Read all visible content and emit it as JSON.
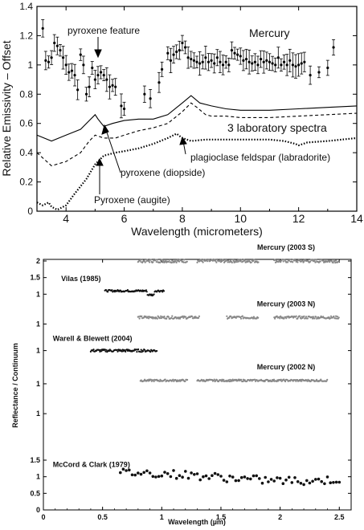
{
  "chart_data": [
    {
      "type": "scatter",
      "xlabel": "Wavelength (micrometers)",
      "ylabel": "Relative Emissivity – Offset",
      "xlim": [
        3,
        14
      ],
      "ylim": [
        0,
        1.4
      ],
      "xticks": [
        "4",
        "6",
        "8",
        "10",
        "12",
        "14"
      ],
      "yticks": [
        "0",
        "0.2",
        "0.4",
        "0.6",
        "0.8",
        "1",
        "1.2",
        "1.4"
      ],
      "annotations": {
        "mercury": "Mercury",
        "pyroxene_feature": "pyroxene feature",
        "lab_spectra": "3 laboratory spectra",
        "plagioclase": "plagioclase feldspar (labradorite)",
        "diopside": "pyroxene (diopside)",
        "augite": "Pyroxene (augite)"
      },
      "series": [
        {
          "name": "Mercury",
          "style": "errorbar",
          "x": [
            3.2,
            3.3,
            3.4,
            3.5,
            3.6,
            3.7,
            3.8,
            3.9,
            4.0,
            4.1,
            4.2,
            4.3,
            4.4,
            4.5,
            4.6,
            4.7,
            4.8,
            4.9,
            5.0,
            5.1,
            5.2,
            5.3,
            5.4,
            5.5,
            5.6,
            5.7,
            5.9,
            6.0,
            6.7,
            6.9,
            7.2,
            7.3,
            7.5,
            7.6,
            7.7,
            7.8,
            7.9,
            8.0,
            8.1,
            8.2,
            8.3,
            8.4,
            8.5,
            8.6,
            8.7,
            8.8,
            8.9,
            9.0,
            9.1,
            9.2,
            9.3,
            9.4,
            9.5,
            9.6,
            9.7,
            9.8,
            9.9,
            10.0,
            10.1,
            10.2,
            10.3,
            10.4,
            10.5,
            10.6,
            10.7,
            10.8,
            10.9,
            11.0,
            11.1,
            11.2,
            11.3,
            11.4,
            11.5,
            11.6,
            11.7,
            11.8,
            11.9,
            12.0,
            12.1,
            12.2,
            12.4,
            12.7,
            13.0,
            13.2
          ],
          "y": [
            1.25,
            1.03,
            1.02,
            1.05,
            1.15,
            1.13,
            1.1,
            1.05,
            1.0,
            0.95,
            0.96,
            0.93,
            0.83,
            1.07,
            1.0,
            0.8,
            0.85,
            0.98,
            0.9,
            0.93,
            0.95,
            0.93,
            0.9,
            0.85,
            0.86,
            0.85,
            0.72,
            0.7,
            0.8,
            0.77,
            0.88,
            0.97,
            1.08,
            1.03,
            1.07,
            1.09,
            1.1,
            1.15,
            1.12,
            1.05,
            1.04,
            1.03,
            1.02,
            1.01,
            1.02,
            1.05,
            1.02,
            1.03,
            1.01,
            1.05,
            1.02,
            1.0,
            1.02,
            1.0,
            1.1,
            1.08,
            1.07,
            1.06,
            1.03,
            1.04,
            1.02,
            1.01,
            1.02,
            1.0,
            1.04,
            1.02,
            1.03,
            1.02,
            1.01,
            1.0,
            1.05,
            1.0,
            1.02,
            1.0,
            1.03,
            1.0,
            0.99,
            1.0,
            1.01,
            1.02,
            0.93,
            0.95,
            0.98,
            1.12
          ],
          "err": 0.06
        },
        {
          "name": "",
          "style": "solid",
          "x": [
            3.0,
            3.5,
            4.0,
            4.5,
            4.8,
            5.0,
            5.1,
            5.3,
            5.6,
            6.0,
            6.5,
            7.0,
            7.5,
            8.0,
            8.3,
            8.6,
            9.0,
            9.5,
            10.0,
            11.0,
            12.0,
            13.0,
            14.0
          ],
          "y": [
            0.52,
            0.48,
            0.52,
            0.56,
            0.62,
            0.66,
            0.63,
            0.58,
            0.6,
            0.62,
            0.63,
            0.63,
            0.66,
            0.74,
            0.79,
            0.74,
            0.72,
            0.7,
            0.69,
            0.69,
            0.7,
            0.71,
            0.72
          ]
        },
        {
          "name": "",
          "style": "dashed",
          "x": [
            3.0,
            3.5,
            4.0,
            4.5,
            4.8,
            5.0,
            5.3,
            5.7,
            6.0,
            6.5,
            7.0,
            7.5,
            8.0,
            8.3,
            8.5,
            8.8,
            9.0,
            9.5,
            10.0,
            11.0,
            12.0,
            13.0,
            14.0
          ],
          "y": [
            0.4,
            0.31,
            0.34,
            0.4,
            0.48,
            0.52,
            0.5,
            0.5,
            0.52,
            0.55,
            0.57,
            0.6,
            0.68,
            0.74,
            0.71,
            0.66,
            0.65,
            0.65,
            0.64,
            0.64,
            0.65,
            0.66,
            0.67
          ]
        },
        {
          "name": "",
          "style": "dotted",
          "x": [
            3.0,
            3.2,
            3.4,
            3.5,
            3.7,
            4.0,
            4.3,
            4.7,
            5.0,
            5.3,
            5.7,
            6.0,
            6.5,
            7.0,
            7.5,
            7.8,
            8.0,
            8.3,
            8.8,
            9.5,
            10.0,
            11.0,
            11.5,
            11.9,
            12.0,
            12.3,
            13.0,
            14.0
          ],
          "y": [
            0.06,
            0.04,
            0.06,
            0.03,
            0.01,
            0.04,
            0.12,
            0.22,
            0.32,
            0.38,
            0.4,
            0.41,
            0.43,
            0.46,
            0.5,
            0.53,
            0.5,
            0.48,
            0.49,
            0.49,
            0.49,
            0.49,
            0.48,
            0.46,
            0.45,
            0.47,
            0.48,
            0.5
          ]
        }
      ]
    },
    {
      "type": "scatter",
      "xlabel": "Wavelength (µm)",
      "ylabel": "Reflectance / Continuum",
      "xlim": [
        0,
        2.6
      ],
      "xticks": [
        "0",
        "0.5",
        "1",
        "1.5",
        "2",
        "2.5"
      ],
      "ylabels": [
        {
          "text": "2",
          "v": 7.5
        },
        {
          "text": "1.5",
          "v": 7.0
        },
        {
          "text": "1",
          "v": 6.5
        },
        {
          "text": "1",
          "v": 5.6
        },
        {
          "text": "1",
          "v": 4.8
        },
        {
          "text": "1",
          "v": 3.8
        },
        {
          "text": "1",
          "v": 2.9
        },
        {
          "text": "1.5",
          "v": 1.5
        },
        {
          "text": "1",
          "v": 1.0
        },
        {
          "text": "0.5",
          "v": 0.5
        },
        {
          "text": "0",
          "v": 0.0
        }
      ],
      "series": [
        {
          "name": "Mercury (2003 S)",
          "label_x": 2.05,
          "offset": 6.5,
          "x_range": [
            0.8,
            2.5
          ],
          "segments": [
            [
              0.8,
              1.22
            ],
            [
              1.3,
              1.82
            ],
            [
              1.95,
              2.5
            ]
          ],
          "color": "#888888",
          "scatter": 0.05
        },
        {
          "name": "Vilas (1985)",
          "label_x": 0.15,
          "offset": 5.6,
          "x_range": [
            0.52,
            1.02
          ],
          "segments": [
            [
              0.52,
              1.02
            ]
          ],
          "color": "#111111",
          "scatter": 0.03
        },
        {
          "name": "Mercury (2003 N)",
          "label_x": 2.05,
          "offset": 4.8,
          "x_range": [
            0.8,
            2.5
          ],
          "segments": [
            [
              0.8,
              1.32
            ],
            [
              1.55,
              1.82
            ],
            [
              1.95,
              2.5
            ]
          ],
          "color": "#888888",
          "scatter": 0.04
        },
        {
          "name": "Warell & Blewett (2004)",
          "label_x": 0.08,
          "offset": 3.8,
          "x_range": [
            0.4,
            0.96
          ],
          "segments": [
            [
              0.4,
              0.96
            ]
          ],
          "color": "#111111",
          "scatter": 0.04
        },
        {
          "name": "Mercury (2002 N)",
          "label_x": 2.05,
          "offset": 2.9,
          "x_range": [
            0.82,
            2.4
          ],
          "segments": [
            [
              0.82,
              1.22
            ],
            [
              1.3,
              2.4
            ]
          ],
          "color": "#888888",
          "scatter": 0.03
        },
        {
          "name": "McCord & Clark (1979)",
          "label_x": 0.08,
          "offset": 0.0,
          "x_range": [
            0.65,
            2.5
          ],
          "segments": [
            [
              0.65,
              2.5
            ]
          ],
          "color": "#111111",
          "scatter": 0.12
        }
      ]
    }
  ]
}
